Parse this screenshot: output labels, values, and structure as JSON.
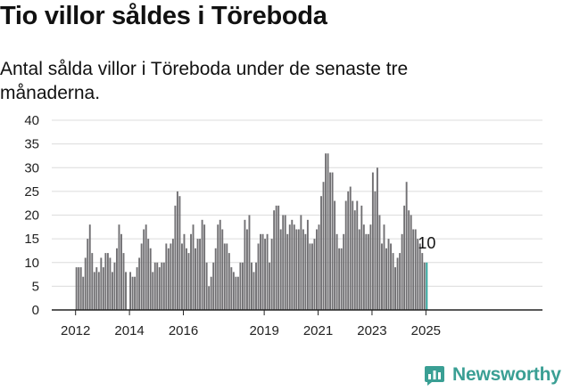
{
  "title": "Tio villor såldes i Töreboda",
  "subtitle": "Antal sålda villor i Töreboda under de senaste tre månaderna.",
  "brand": {
    "name": "Newsworthy",
    "color": "#3a9f94"
  },
  "chart_data": {
    "type": "bar",
    "title": "",
    "xlabel": "",
    "ylabel": "",
    "ylim": [
      0,
      40
    ],
    "yticks": [
      0,
      5,
      10,
      15,
      20,
      25,
      30,
      35,
      40
    ],
    "xticks": [
      "2012",
      "2014",
      "2016",
      "2019",
      "2021",
      "2023",
      "2025"
    ],
    "start_month": "2012-01",
    "bar_color": "#717073",
    "highlight_color": "#2aa198",
    "grid": true,
    "annotation": "10",
    "values": [
      9,
      9,
      9,
      7,
      11,
      15,
      18,
      12,
      8,
      9,
      8,
      11,
      9,
      12,
      12,
      11,
      8,
      10,
      13,
      18,
      16,
      12,
      8,
      0,
      8,
      7,
      7,
      9,
      11,
      14,
      17,
      18,
      15,
      13,
      8,
      10,
      10,
      9,
      10,
      10,
      14,
      13,
      14,
      15,
      22,
      25,
      24,
      14,
      16,
      13,
      12,
      16,
      18,
      13,
      15,
      15,
      19,
      18,
      10,
      5,
      7,
      10,
      13,
      18,
      19,
      17,
      14,
      14,
      12,
      9,
      8,
      7,
      7,
      10,
      10,
      19,
      17,
      20,
      10,
      8,
      10,
      14,
      16,
      16,
      15,
      16,
      10,
      15,
      21,
      22,
      22,
      17,
      20,
      20,
      16,
      18,
      19,
      18,
      17,
      17,
      20,
      17,
      16,
      19,
      14,
      14,
      15,
      17,
      18,
      24,
      27,
      33,
      33,
      29,
      29,
      23,
      16,
      13,
      13,
      16,
      23,
      25,
      26,
      23,
      21,
      23,
      17,
      22,
      18,
      16,
      16,
      18,
      29,
      25,
      30,
      20,
      14,
      18,
      13,
      15,
      14,
      12,
      9,
      11,
      12,
      16,
      22,
      27,
      21,
      20,
      17,
      17,
      15,
      14,
      12,
      10,
      10
    ]
  }
}
